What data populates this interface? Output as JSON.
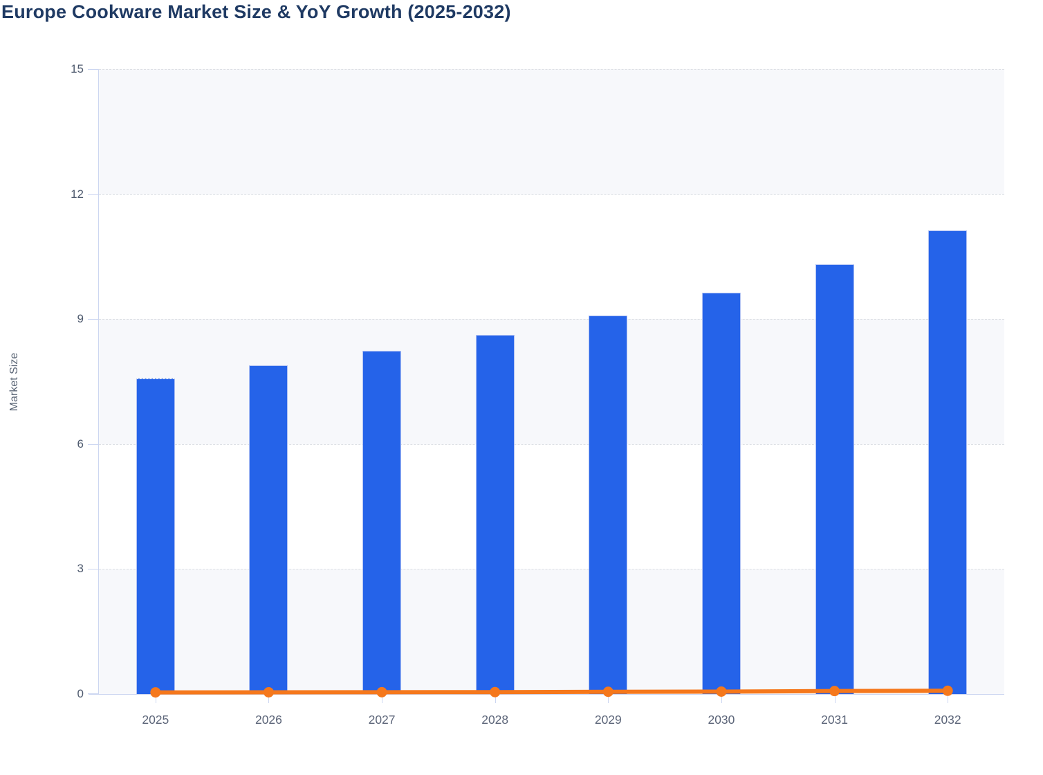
{
  "header": {
    "title": "Europe Cookware Market Size & YoY Growth (2025-2032)"
  },
  "chart_data": {
    "type": "combo",
    "title": "Europe Cookware Market Size & YoY Growth (2025-2032)",
    "xlabel": "",
    "ylabel": "Market Size",
    "categories": [
      "2025",
      "2026",
      "2027",
      "2028",
      "2029",
      "2030",
      "2031",
      "2032"
    ],
    "series": [
      {
        "name": "Market Size",
        "type": "bar",
        "color": "#2563e9",
        "values": [
          7.57,
          7.89,
          8.24,
          8.62,
          9.09,
          9.63,
          10.32,
          11.13
        ]
      },
      {
        "name": "YoY Growth",
        "type": "line",
        "color": "#f5781c",
        "values": [
          0.04,
          0.042,
          0.044,
          0.046,
          0.054,
          0.059,
          0.072,
          0.078
        ]
      }
    ],
    "y_axis": {
      "min": 0,
      "max": 15,
      "ticks": [
        0,
        3,
        6,
        9,
        12,
        15
      ]
    },
    "legend": "none",
    "layout_hints": {
      "grid": "horizontal-dashed",
      "bands": "alternating-from-top",
      "band_color": "#f7f8fb",
      "gridline_color": "#dcdfe4",
      "axis_color": "#ccd6f1",
      "title_color": "#1f3a63",
      "tick_label_color": "#4e5a6e",
      "category_label_color": "#5b6478"
    }
  }
}
